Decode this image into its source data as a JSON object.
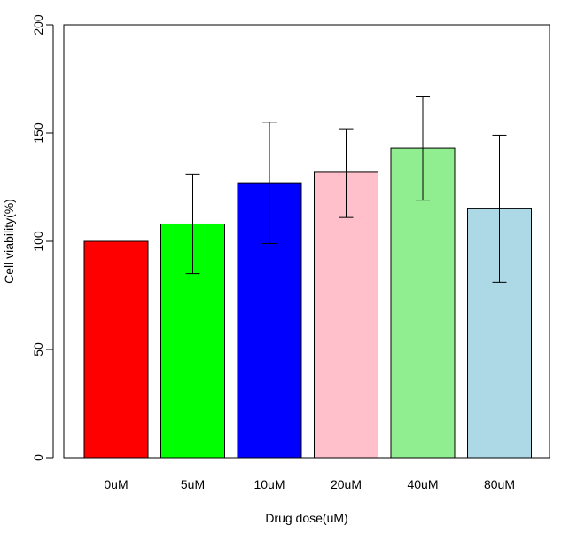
{
  "chart_data": {
    "type": "bar",
    "title": "",
    "xlabel": "Drug dose(uM)",
    "ylabel": "Cell viability(%)",
    "categories": [
      "0uM",
      "5uM",
      "10uM",
      "20uM",
      "40uM",
      "80uM"
    ],
    "values": [
      100,
      108,
      127,
      132,
      143,
      115
    ],
    "error_low": [
      null,
      85,
      99,
      111,
      119,
      81
    ],
    "error_high": [
      null,
      131,
      155,
      152,
      167,
      149
    ],
    "colors": [
      "#ff0000",
      "#00ff00",
      "#0000ff",
      "#ffc0cb",
      "#90ee90",
      "#add8e6"
    ],
    "ylim": [
      0,
      200
    ],
    "yticks": [
      0,
      50,
      100,
      150,
      200
    ],
    "grid": false,
    "legend": "none"
  }
}
